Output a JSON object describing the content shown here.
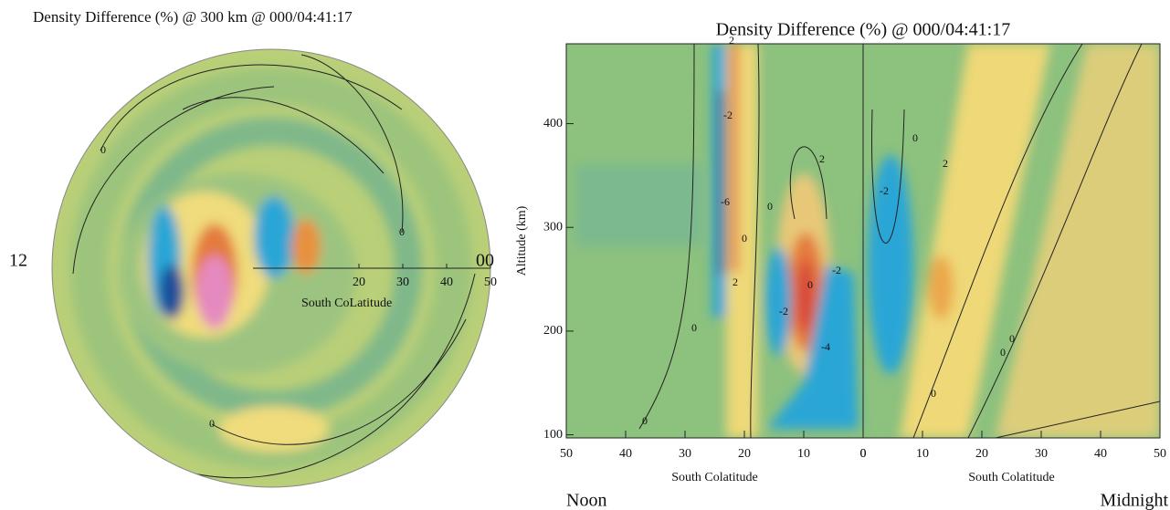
{
  "chart_data": [
    {
      "type": "polar-contour",
      "title": "Density Difference (%) @ 300 km @ 000/04:41:17",
      "rlim": [
        0,
        50
      ],
      "rticks": [
        20,
        30,
        40,
        50
      ],
      "rlabel": "South CoLatitude",
      "left_label": "12",
      "right_label": "00",
      "contour_labels": [
        "0",
        "0",
        "0"
      ]
    },
    {
      "type": "contour",
      "title": "Density Difference (%) @ 000/04:41:17",
      "ylabel": "Altitude (km)",
      "ylim": [
        97,
        477
      ],
      "yticks": [
        100,
        200,
        300,
        400
      ],
      "panels": [
        {
          "xlim": [
            50,
            0
          ],
          "xticks": [
            50,
            40,
            30,
            20,
            10,
            0
          ],
          "xlabel": "South Colatitude",
          "label": "Noon"
        },
        {
          "xlim": [
            0,
            50
          ],
          "xticks": [
            0,
            10,
            20,
            30,
            40,
            50
          ],
          "xlabel": "South Colatitude",
          "label": "Midnight"
        }
      ],
      "contour_labels": [
        "2",
        "-2",
        "-6",
        "2",
        "0",
        "0",
        "2",
        "-2",
        "0",
        "-2",
        "-4",
        "0",
        "0",
        "0",
        "-2",
        "2",
        "0",
        "0",
        "0"
      ]
    }
  ]
}
